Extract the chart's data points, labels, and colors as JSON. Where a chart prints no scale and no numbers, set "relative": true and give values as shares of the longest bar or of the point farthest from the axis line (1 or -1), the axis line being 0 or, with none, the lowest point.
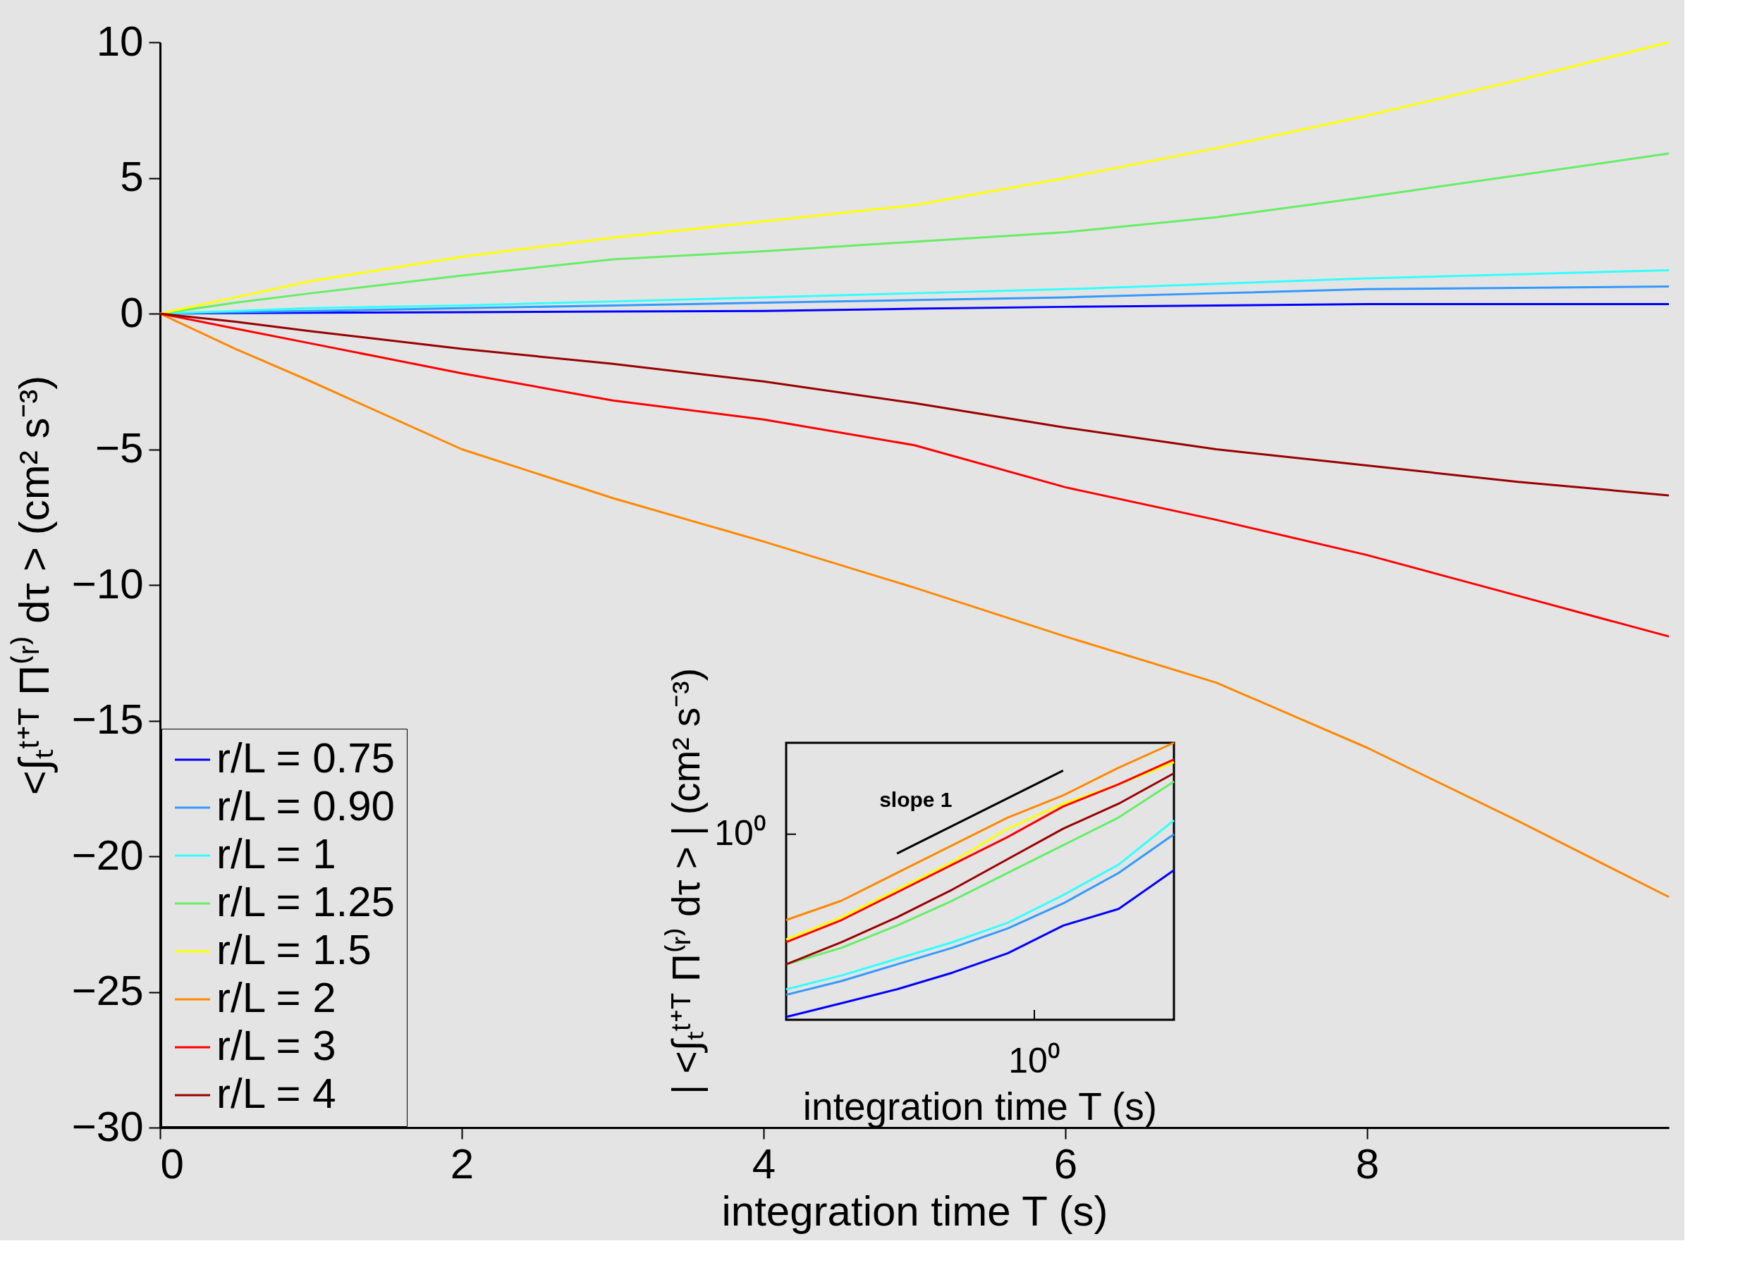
{
  "chart_data": [
    {
      "type": "line",
      "xlabel": "integration time T (s)",
      "ylabel": "<∫ₜᵗ⁺ᵀ Π⁽ʳ⁾ dτ > (cm² s⁻³)",
      "x": [
        0,
        0.5,
        1,
        2,
        3,
        4,
        5,
        6,
        7,
        8,
        9,
        10
      ],
      "xlim": [
        0,
        10
      ],
      "xticks": [
        0,
        2,
        4,
        6,
        8
      ],
      "ylim": [
        -30,
        10
      ],
      "yticks": [
        -30,
        -25,
        -20,
        -15,
        -10,
        -5,
        0,
        5,
        10
      ],
      "grid": false,
      "legend": "bottom left",
      "marker": "none",
      "line_style": "solid",
      "series": [
        {
          "name": "r/L = 0.75",
          "color": "#0000ff",
          "values": [
            0,
            0.02,
            0.03,
            0.05,
            0.08,
            0.1,
            0.18,
            0.25,
            0.3,
            0.35,
            0.35,
            0.35
          ]
        },
        {
          "name": "r/L = 0.90",
          "color": "#3399ff",
          "values": [
            0,
            0.05,
            0.1,
            0.2,
            0.3,
            0.4,
            0.5,
            0.6,
            0.75,
            0.9,
            0.95,
            1.0
          ]
        },
        {
          "name": "r/L = 1",
          "color": "#33ffff",
          "values": [
            0,
            0.1,
            0.2,
            0.3,
            0.45,
            0.6,
            0.75,
            0.9,
            1.1,
            1.3,
            1.45,
            1.6
          ]
        },
        {
          "name": "r/L = 1.25",
          "color": "#66ee66",
          "values": [
            0,
            0.4,
            0.75,
            1.4,
            2.0,
            2.3,
            2.65,
            3.0,
            3.55,
            4.3,
            5.1,
            5.9
          ]
        },
        {
          "name": "r/L = 1.5",
          "color": "#ffff00",
          "values": [
            0,
            0.6,
            1.2,
            2.1,
            2.8,
            3.4,
            4.0,
            5.0,
            6.1,
            7.3,
            8.6,
            10.0
          ]
        },
        {
          "name": "r/L = 2",
          "color": "#ff8800",
          "values": [
            0,
            -1.3,
            -2.5,
            -5.0,
            -6.8,
            -8.4,
            -10.1,
            -11.9,
            -13.6,
            -16.0,
            -18.7,
            -21.5
          ]
        },
        {
          "name": "r/L = 3",
          "color": "#ff0000",
          "values": [
            0,
            -0.55,
            -1.1,
            -2.2,
            -3.2,
            -3.9,
            -4.85,
            -6.4,
            -7.6,
            -8.9,
            -10.4,
            -11.9
          ]
        },
        {
          "name": "r/L = 4",
          "color": "#990000",
          "values": [
            0,
            -0.3,
            -0.65,
            -1.3,
            -1.85,
            -2.5,
            -3.3,
            -4.2,
            -5.0,
            -5.6,
            -6.2,
            -6.7
          ]
        }
      ]
    },
    {
      "type": "line",
      "relative": true,
      "xlabel": "integration time T (s)",
      "ylabel": "| <∫ₜᵗ⁺ᵀ Π⁽ʳ⁾ dτ > | (cm² s⁻³)",
      "categories": [
        null,
        null,
        null,
        null,
        null,
        null,
        null,
        null
      ],
      "annotations": [
        "10⁰",
        "10⁰"
      ],
      "marker": "none",
      "series": [
        {
          "color": "#0000ff",
          "values": [
            0.01,
            0.06,
            0.11,
            0.17,
            0.24,
            0.34,
            0.4,
            0.54
          ]
        },
        {
          "color": "#3399ff",
          "values": [
            0.09,
            0.14,
            0.2,
            0.26,
            0.33,
            0.42,
            0.53,
            0.67
          ]
        },
        {
          "color": "#33ffff",
          "values": [
            0.11,
            0.16,
            0.22,
            0.28,
            0.35,
            0.45,
            0.56,
            0.72
          ]
        },
        {
          "color": "#66ee66",
          "values": [
            0.2,
            0.26,
            0.34,
            0.43,
            0.53,
            0.63,
            0.73,
            0.86
          ]
        },
        {
          "color": "#ffff00",
          "values": [
            0.29,
            0.37,
            0.47,
            0.57,
            0.69,
            0.78,
            0.85,
            0.93
          ]
        },
        {
          "color": "#ff8800",
          "values": [
            0.36,
            0.43,
            0.53,
            0.63,
            0.73,
            0.81,
            0.91,
            1.0
          ]
        },
        {
          "color": "#ff0000",
          "values": [
            0.28,
            0.36,
            0.46,
            0.56,
            0.66,
            0.77,
            0.85,
            0.94
          ]
        },
        {
          "color": "#990000",
          "values": [
            0.2,
            0.28,
            0.37,
            0.47,
            0.58,
            0.69,
            0.78,
            0.89
          ]
        },
        {
          "name": "slope 1",
          "color": "#000000",
          "values": [
            null,
            null,
            0.6,
            null,
            null,
            0.9,
            null,
            null
          ]
        }
      ]
    }
  ]
}
